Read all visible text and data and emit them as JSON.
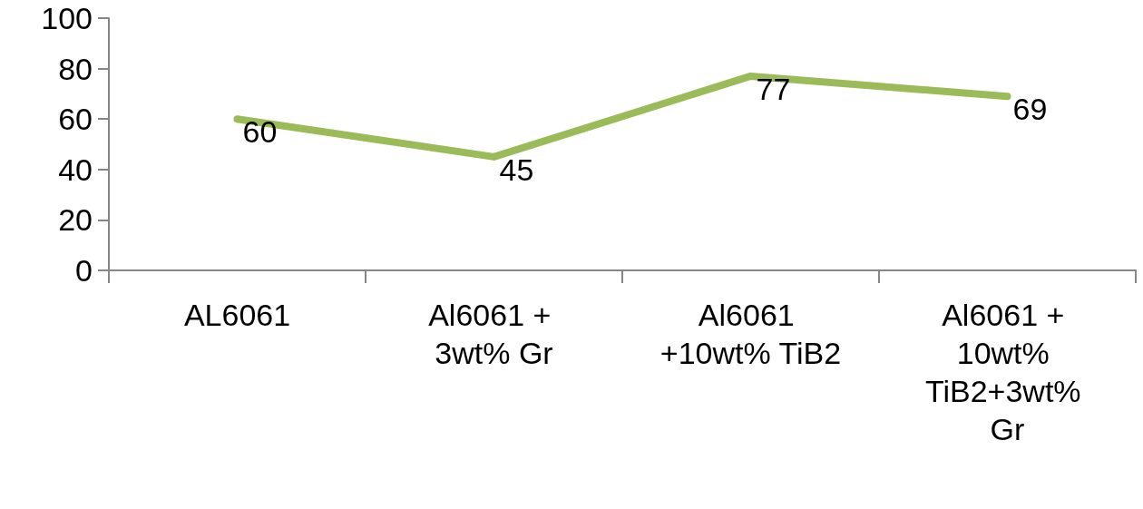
{
  "chart_data": {
    "type": "line",
    "categories": [
      "AL6061",
      "Al6061 + 3wt% Gr",
      "Al6061 +10wt% TiB2",
      "Al6061 + 10wt% TiB2+3wt% Gr"
    ],
    "series": [
      {
        "color": "#9bbb59",
        "values": [
          60,
          45,
          77,
          69
        ]
      }
    ],
    "ylim": [
      0,
      100
    ],
    "yticks": [
      0,
      20,
      40,
      60,
      80,
      100
    ],
    "data_labels": true
  }
}
